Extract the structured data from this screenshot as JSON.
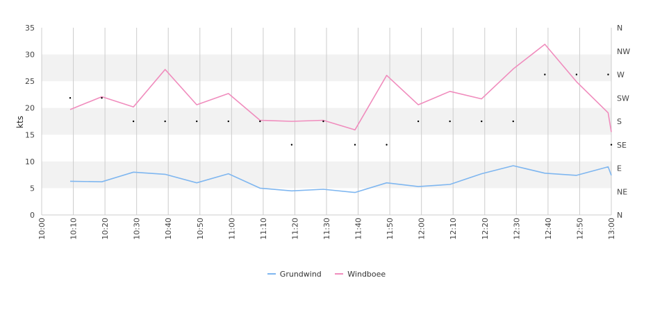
{
  "chart_data": {
    "type": "line",
    "x": [
      "10:00",
      "10:10",
      "10:20",
      "10:30",
      "10:40",
      "10:50",
      "11:00",
      "11:10",
      "11:20",
      "11:30",
      "11:40",
      "11:50",
      "12:00",
      "12:10",
      "12:20",
      "12:30",
      "12:40",
      "12:50",
      "13:00"
    ],
    "series": [
      {
        "name": "Grundwind",
        "color": "#7eb6f0",
        "points": [
          [
            "10:09",
            6.3
          ],
          [
            "10:19",
            6.2
          ],
          [
            "10:29",
            8.0
          ],
          [
            "10:39",
            7.6
          ],
          [
            "10:49",
            6.0
          ],
          [
            "10:59",
            7.7
          ],
          [
            "11:09",
            5.0
          ],
          [
            "11:19",
            4.5
          ],
          [
            "11:29",
            4.8
          ],
          [
            "11:39",
            4.2
          ],
          [
            "11:49",
            6.0
          ],
          [
            "11:59",
            5.3
          ],
          [
            "12:09",
            5.7
          ],
          [
            "12:19",
            7.7
          ],
          [
            "12:29",
            9.2
          ],
          [
            "12:39",
            7.8
          ],
          [
            "12:49",
            7.4
          ],
          [
            "12:59",
            9.0
          ],
          [
            "13:00",
            7.4
          ]
        ]
      },
      {
        "name": "Windboee",
        "color": "#f08cbd",
        "points": [
          [
            "10:09",
            19.7
          ],
          [
            "10:19",
            22.1
          ],
          [
            "10:29",
            20.2
          ],
          [
            "10:39",
            27.2
          ],
          [
            "10:49",
            20.6
          ],
          [
            "10:59",
            22.7
          ],
          [
            "11:09",
            17.7
          ],
          [
            "11:19",
            17.5
          ],
          [
            "11:29",
            17.7
          ],
          [
            "11:39",
            15.9
          ],
          [
            "11:49",
            26.1
          ],
          [
            "11:59",
            20.6
          ],
          [
            "12:09",
            23.1
          ],
          [
            "12:19",
            21.7
          ],
          [
            "12:29",
            27.3
          ],
          [
            "12:39",
            31.9
          ],
          [
            "12:49",
            24.9
          ],
          [
            "12:59",
            19.1
          ],
          [
            "13:00",
            15.5
          ]
        ]
      }
    ],
    "direction": {
      "points": [
        [
          "10:09",
          "SW"
        ],
        [
          "10:19",
          "SW"
        ],
        [
          "10:29",
          "S"
        ],
        [
          "10:39",
          "S"
        ],
        [
          "10:49",
          "S"
        ],
        [
          "10:59",
          "S"
        ],
        [
          "11:09",
          "S"
        ],
        [
          "11:19",
          "SE"
        ],
        [
          "11:29",
          "S"
        ],
        [
          "11:39",
          "SE"
        ],
        [
          "11:49",
          "SE"
        ],
        [
          "11:59",
          "S"
        ],
        [
          "12:09",
          "S"
        ],
        [
          "12:19",
          "S"
        ],
        [
          "12:29",
          "S"
        ],
        [
          "12:39",
          "W"
        ],
        [
          "12:49",
          "W"
        ],
        [
          "12:59",
          "W"
        ],
        [
          "13:00",
          "SE"
        ]
      ]
    },
    "ylabel": "kts",
    "ylim": [
      0,
      35
    ],
    "yticks": [
      0,
      5,
      10,
      15,
      20,
      25,
      30,
      35
    ],
    "y2ticks": [
      "N",
      "NE",
      "E",
      "SE",
      "S",
      "SW",
      "W",
      "NW",
      "N"
    ],
    "grid": true,
    "legend": "bottom",
    "legend_entries": [
      "Grundwind",
      "Windboee"
    ]
  }
}
